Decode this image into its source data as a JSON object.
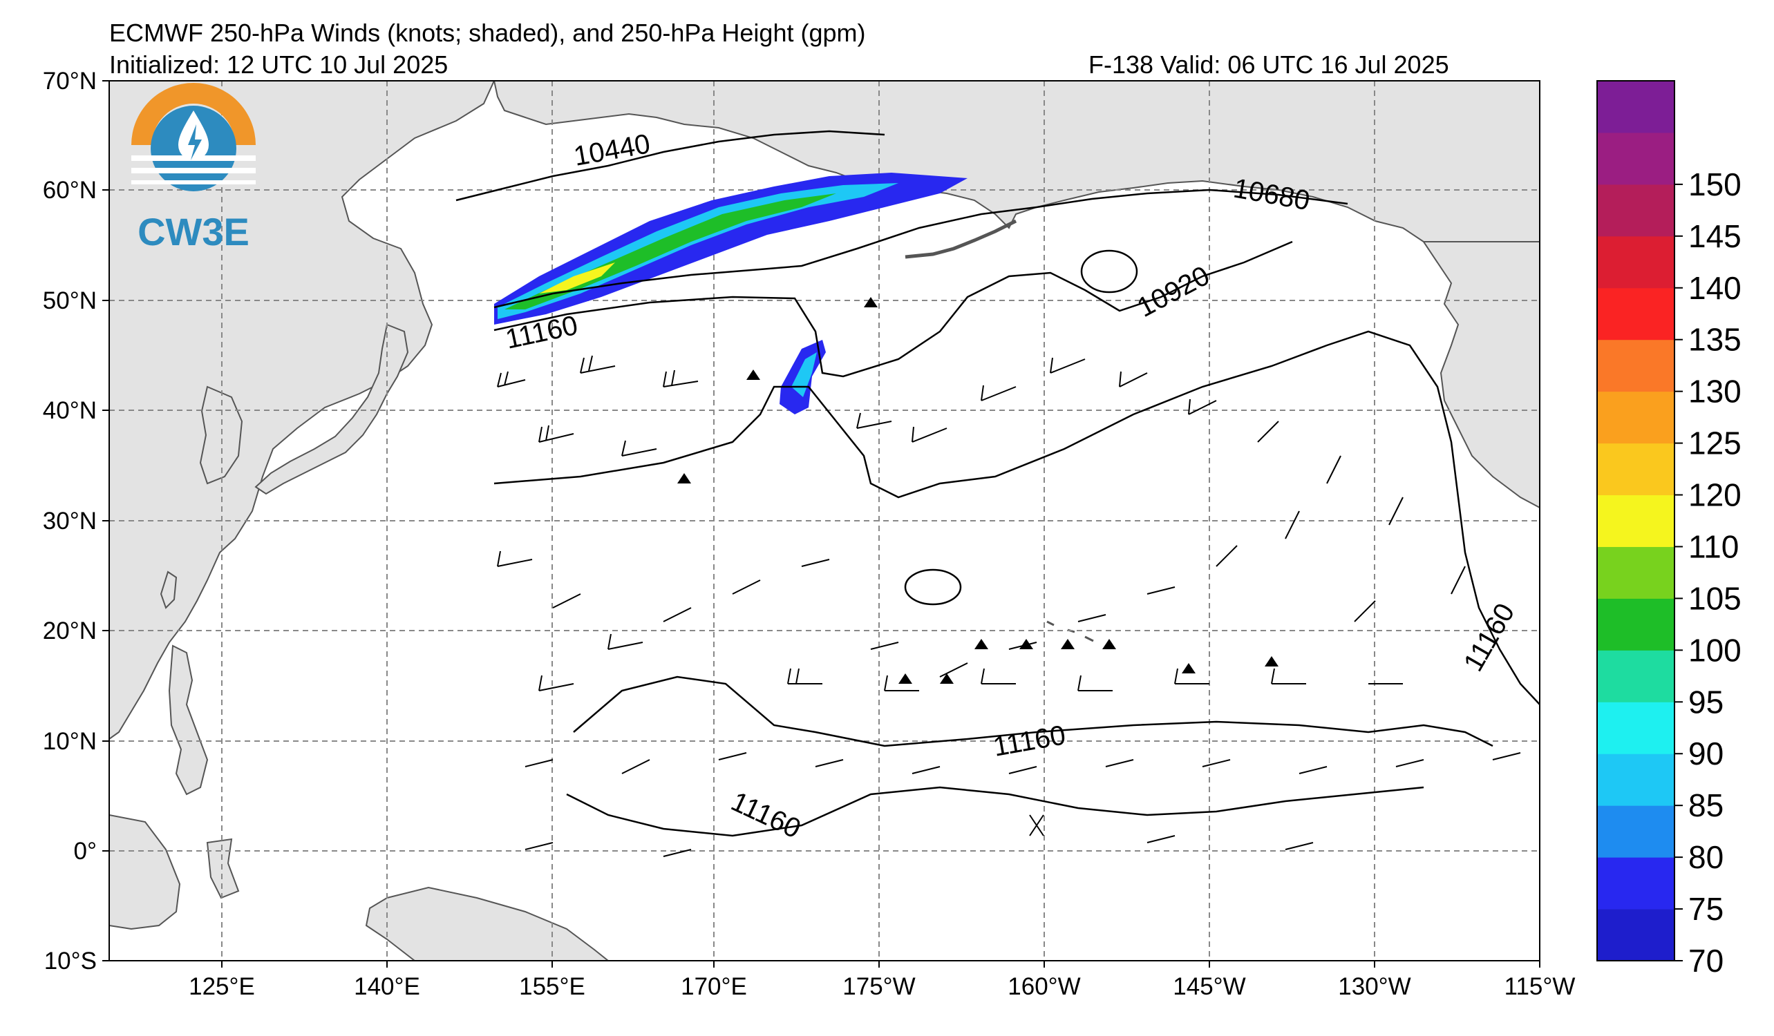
{
  "header": {
    "title": "ECMWF 250-hPa Winds (knots; shaded), and 250-hPa Height (gpm)",
    "initialized": "Initialized: 12 UTC 10 Jul 2025",
    "valid": "F-138  Valid: 06 UTC 16 Jul 2025"
  },
  "logo": {
    "text": "CW3E",
    "colors": {
      "orange": "#f0962a",
      "blue": "#2d8bbf"
    }
  },
  "map": {
    "lon_ticks": [
      "125°E",
      "140°E",
      "155°E",
      "170°E",
      "175°W",
      "160°W",
      "145°W",
      "130°W",
      "115°W"
    ],
    "lat_ticks": [
      "70°N",
      "60°N",
      "50°N",
      "40°N",
      "30°N",
      "20°N",
      "10°N",
      "0°",
      "10°S"
    ],
    "land_color": "#e3e3e3",
    "contour_labels": [
      "10440",
      "10680",
      "10920",
      "11160",
      "11160",
      "11160",
      "11160"
    ]
  },
  "colorbar": {
    "levels": [
      "70",
      "75",
      "80",
      "85",
      "90",
      "95",
      "100",
      "105",
      "110",
      "120",
      "125",
      "130",
      "135",
      "140",
      "145",
      "150"
    ],
    "colors": [
      "#1e1ecc",
      "#2828f0",
      "#1e8cf0",
      "#1ec8f5",
      "#1ef0f0",
      "#1edca0",
      "#1ebe28",
      "#78d21e",
      "#f5f51e",
      "#fac81e",
      "#faa01e",
      "#fa7828",
      "#fa2323",
      "#dc1e32",
      "#b41e5a",
      "#9b1e82",
      "#7d1e96"
    ]
  }
}
